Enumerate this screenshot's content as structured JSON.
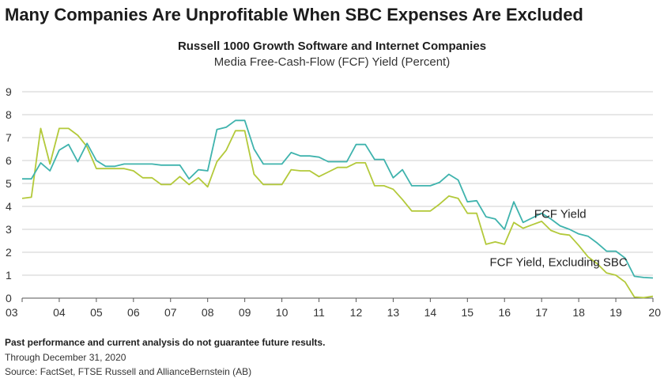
{
  "headline": "Many Companies Are Unprofitable When SBC Expenses Are Excluded",
  "subtitle": "Russell 1000 Growth Software and Internet Companies",
  "subtitle2": "Media Free-Cash-Flow (FCF) Yield (Percent)",
  "footer": {
    "disclaimer": "Past performance and current analysis do not guarantee future results.",
    "through": "Through December 31, 2020",
    "source": "Source: FactSet, FTSE Russell and AllianceBernstein (AB)"
  },
  "colors": {
    "fcf": "#3fb3ad",
    "fcf_ex_sbc": "#b3c93a",
    "grid": "#cfcfcf",
    "axis": "#555555"
  },
  "chart_data": {
    "type": "line",
    "title": "Russell 1000 Growth Software and Internet Companies",
    "ylabel": "Media Free-Cash-Flow (FCF) Yield (Percent)",
    "xlabel": "",
    "xlim": [
      2003,
      2020
    ],
    "ylim": [
      0,
      9
    ],
    "x_ticks": [
      2003,
      2004,
      2005,
      2006,
      2007,
      2008,
      2009,
      2010,
      2011,
      2012,
      2013,
      2014,
      2015,
      2016,
      2017,
      2018,
      2019,
      2020
    ],
    "x_tick_labels": [
      "03",
      "04",
      "05",
      "06",
      "07",
      "08",
      "09",
      "10",
      "11",
      "12",
      "13",
      "14",
      "15",
      "16",
      "17",
      "18",
      "19",
      "20"
    ],
    "y_ticks": [
      0,
      1,
      2,
      3,
      4,
      5,
      6,
      7,
      8,
      9
    ],
    "y_tick_labels": [
      "0",
      "1",
      "2",
      "3",
      "4",
      "5",
      "6",
      "7",
      "8",
      "9"
    ],
    "grid": "horizontal",
    "series": [
      {
        "name": "FCF Yield",
        "label_x": 2016.8,
        "label_y": 3.5,
        "x": [
          2003.0,
          2003.25,
          2003.5,
          2003.75,
          2004.0,
          2004.25,
          2004.5,
          2004.75,
          2005.0,
          2005.25,
          2005.5,
          2005.75,
          2006.0,
          2006.25,
          2006.5,
          2006.75,
          2007.0,
          2007.25,
          2007.5,
          2007.75,
          2008.0,
          2008.25,
          2008.5,
          2008.75,
          2009.0,
          2009.25,
          2009.5,
          2009.75,
          2010.0,
          2010.25,
          2010.5,
          2010.75,
          2011.0,
          2011.25,
          2011.5,
          2011.75,
          2012.0,
          2012.25,
          2012.5,
          2012.75,
          2013.0,
          2013.25,
          2013.5,
          2013.75,
          2014.0,
          2014.25,
          2014.5,
          2014.75,
          2015.0,
          2015.25,
          2015.5,
          2015.75,
          2016.0,
          2016.25,
          2016.5,
          2016.75,
          2017.0,
          2017.25,
          2017.5,
          2017.75,
          2018.0,
          2018.25,
          2018.5,
          2018.75,
          2019.0,
          2019.25,
          2019.5,
          2019.75,
          2020.0
        ],
        "values": [
          5.2,
          5.2,
          5.9,
          5.55,
          6.45,
          6.7,
          5.95,
          6.75,
          6.0,
          5.75,
          5.75,
          5.85,
          5.85,
          5.85,
          5.85,
          5.8,
          5.8,
          5.8,
          5.2,
          5.6,
          5.55,
          7.35,
          7.45,
          7.75,
          7.75,
          6.5,
          5.85,
          5.85,
          5.85,
          6.35,
          6.2,
          6.2,
          6.15,
          5.95,
          5.95,
          5.95,
          6.7,
          6.7,
          6.05,
          6.05,
          5.25,
          5.6,
          4.9,
          4.9,
          4.9,
          5.05,
          5.4,
          5.15,
          4.2,
          4.25,
          3.55,
          3.45,
          3.0,
          4.2,
          3.3,
          3.5,
          3.7,
          3.45,
          3.15,
          3.0,
          2.8,
          2.7,
          2.4,
          2.05,
          2.05,
          1.75,
          0.95,
          0.9,
          0.88
        ]
      },
      {
        "name": "FCF Yield, Excluding SBC",
        "label_x": 2015.6,
        "label_y": 1.4,
        "x": [
          2003.0,
          2003.25,
          2003.5,
          2003.75,
          2004.0,
          2004.25,
          2004.5,
          2004.75,
          2005.0,
          2005.25,
          2005.5,
          2005.75,
          2006.0,
          2006.25,
          2006.5,
          2006.75,
          2007.0,
          2007.25,
          2007.5,
          2007.75,
          2008.0,
          2008.25,
          2008.5,
          2008.75,
          2009.0,
          2009.25,
          2009.5,
          2009.75,
          2010.0,
          2010.25,
          2010.5,
          2010.75,
          2011.0,
          2011.25,
          2011.5,
          2011.75,
          2012.0,
          2012.25,
          2012.5,
          2012.75,
          2013.0,
          2013.25,
          2013.5,
          2013.75,
          2014.0,
          2014.25,
          2014.5,
          2014.75,
          2015.0,
          2015.25,
          2015.5,
          2015.75,
          2016.0,
          2016.25,
          2016.5,
          2016.75,
          2017.0,
          2017.25,
          2017.5,
          2017.75,
          2018.0,
          2018.25,
          2018.5,
          2018.75,
          2019.0,
          2019.25,
          2019.5,
          2019.75,
          2020.0
        ],
        "values": [
          4.35,
          4.4,
          7.4,
          5.85,
          7.4,
          7.4,
          7.1,
          6.6,
          5.65,
          5.65,
          5.65,
          5.65,
          5.55,
          5.25,
          5.25,
          4.95,
          4.95,
          5.3,
          4.95,
          5.25,
          4.85,
          5.95,
          6.45,
          7.3,
          7.3,
          5.4,
          4.95,
          4.95,
          4.95,
          5.6,
          5.55,
          5.55,
          5.3,
          5.5,
          5.7,
          5.7,
          5.9,
          5.9,
          4.9,
          4.9,
          4.75,
          4.3,
          3.8,
          3.8,
          3.8,
          4.1,
          4.45,
          4.35,
          3.7,
          3.7,
          2.35,
          2.45,
          2.35,
          3.3,
          3.05,
          3.2,
          3.35,
          2.95,
          2.8,
          2.75,
          2.3,
          1.8,
          1.5,
          1.1,
          1.0,
          0.7,
          0.05,
          0.02,
          0.08
        ]
      }
    ]
  }
}
